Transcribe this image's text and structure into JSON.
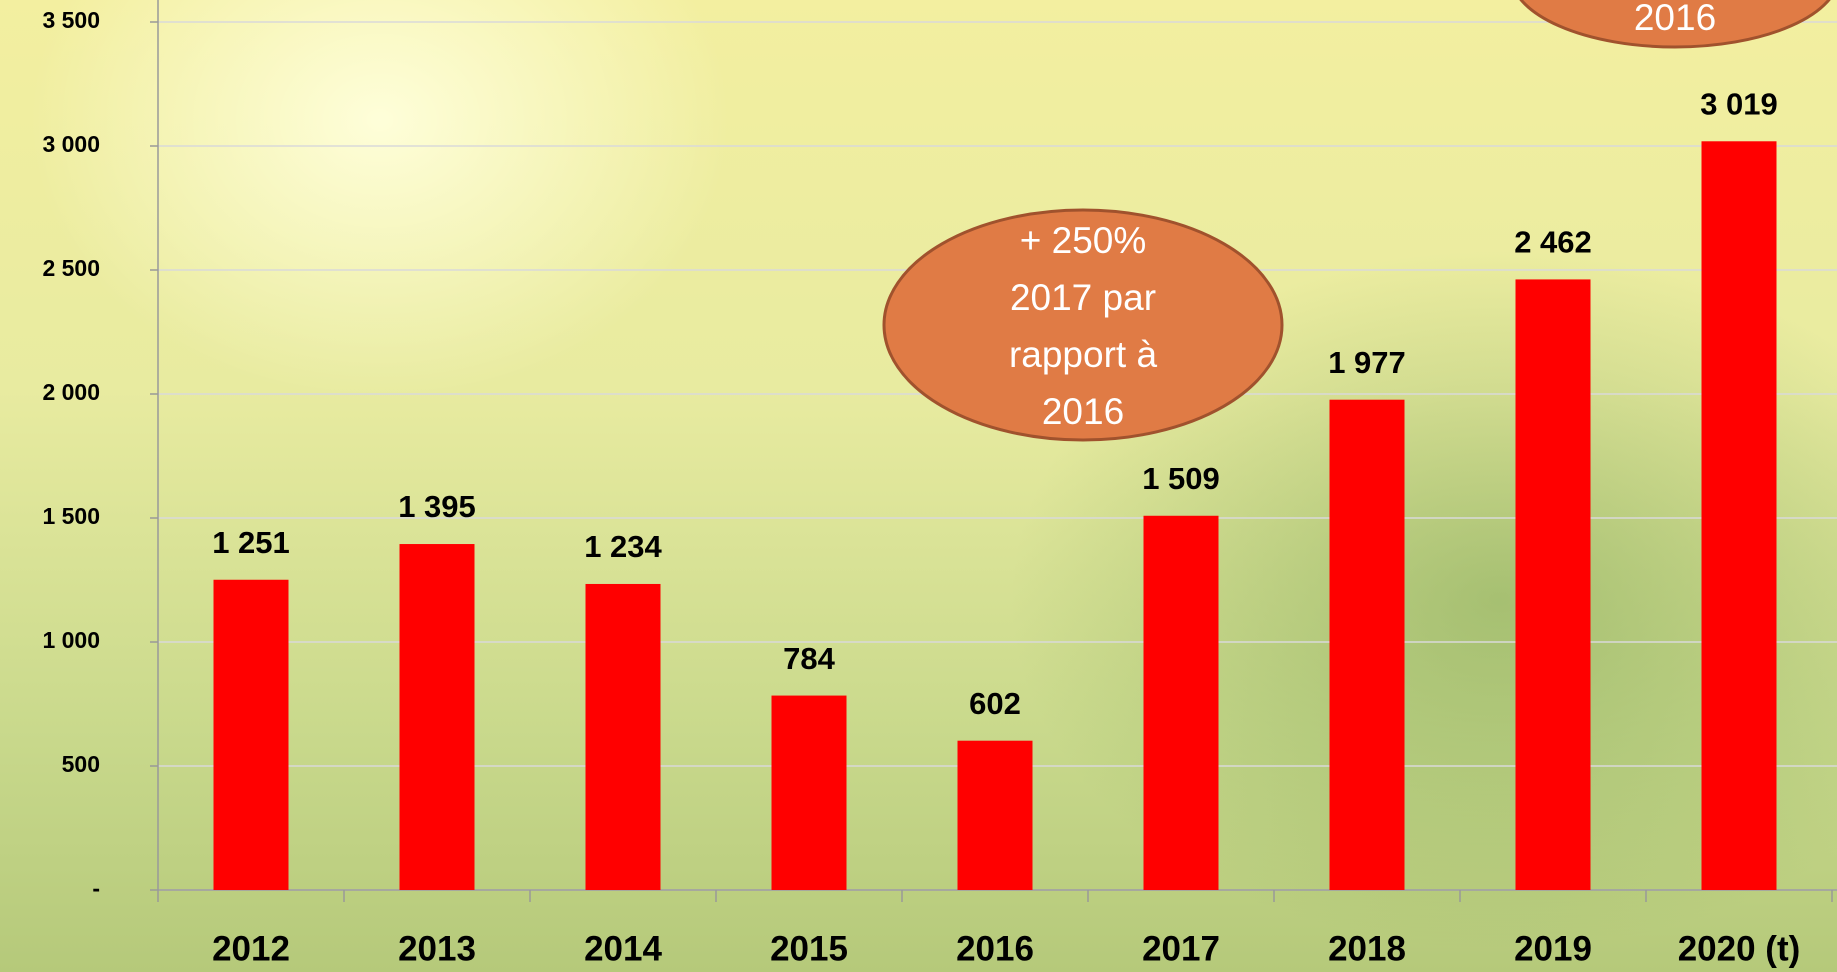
{
  "chart_data": {
    "type": "bar",
    "categories": [
      "2012",
      "2013",
      "2014",
      "2015",
      "2016",
      "2017",
      "2018",
      "2019",
      "2020 (t)"
    ],
    "values": [
      1251,
      1395,
      1234,
      784,
      602,
      1509,
      1977,
      2462,
      3019
    ],
    "value_labels": [
      "1 251",
      "1 395",
      "1 234",
      "784",
      "602",
      "1 509",
      "1 977",
      "2 462",
      "3 019"
    ],
    "color": "#ff0000",
    "ylim": [
      0,
      3500
    ],
    "yticks": [
      {
        "value": 0,
        "label": "-"
      },
      500,
      {
        "value": 1000,
        "label": "1 000"
      },
      {
        "value": 1500,
        "label": "1 500"
      },
      {
        "value": 2000,
        "label": "2 000"
      },
      {
        "value": 2500,
        "label": "2 500"
      },
      {
        "value": 3000,
        "label": "3 000"
      },
      {
        "value": 3500,
        "label": "3 500"
      }
    ],
    "grid": true,
    "annotations": [
      [
        "+ 250%",
        "2017 par",
        "rapport à",
        "2016"
      ],
      [
        "2016"
      ]
    ]
  }
}
